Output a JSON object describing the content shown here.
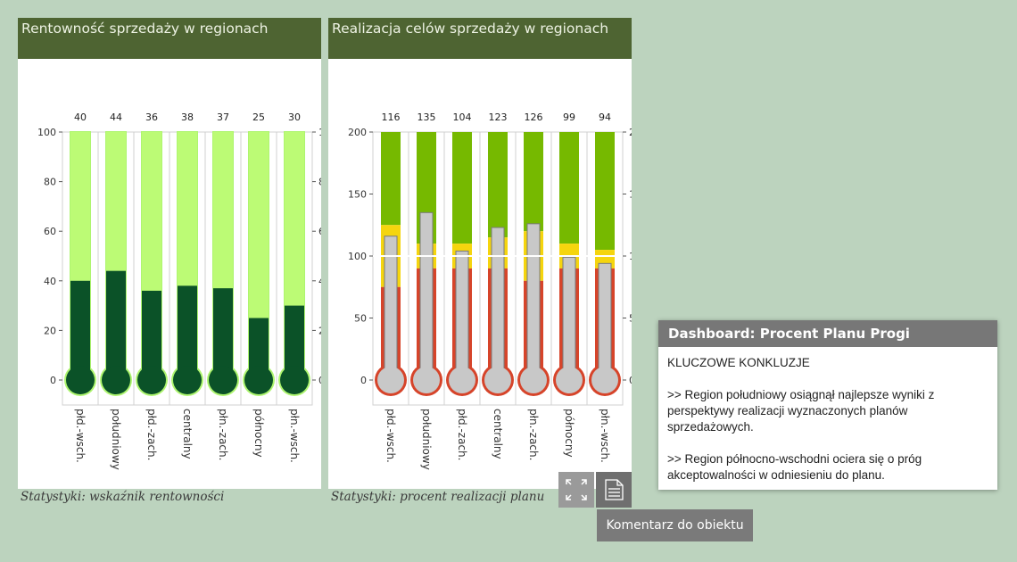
{
  "panels": [
    {
      "title": "Rentowność sprzedaży w regionach",
      "caption": "Statystyki: wskaźnik rentowności"
    },
    {
      "title": "Realizacja celów sprzedaży w regionach",
      "caption": "Statystyki: procent realizacji planu"
    }
  ],
  "chart_data": [
    {
      "type": "bar",
      "title": "Rentowność sprzedaży w regionach",
      "categories": [
        "płd.-wsch.",
        "południowy",
        "płd.-zach.",
        "centralny",
        "płn.-zach.",
        "północny",
        "płn.-wsch."
      ],
      "values": [
        40,
        44,
        36,
        38,
        37,
        25,
        30
      ],
      "ylim": [
        0,
        100
      ],
      "yticks": [
        0,
        20,
        40,
        60,
        80,
        100
      ],
      "grid": false,
      "colors": {
        "fill": "#0b5228",
        "track": "#bcfb75",
        "outline": "#aef56f"
      }
    },
    {
      "type": "bar",
      "title": "Realizacja celów sprzedaży w regionach",
      "categories": [
        "płd.-wsch.",
        "południowy",
        "płd.-zach.",
        "centralny",
        "płn.-zach.",
        "północny",
        "płn.-wsch."
      ],
      "values": [
        116,
        135,
        104,
        123,
        126,
        99,
        94
      ],
      "thresholds": [
        {
          "red": 75,
          "yellow": 125
        },
        {
          "red": 90,
          "yellow": 110
        },
        {
          "red": 90,
          "yellow": 110
        },
        {
          "red": 90,
          "yellow": 115
        },
        {
          "red": 80,
          "yellow": 120
        },
        {
          "red": 90,
          "yellow": 110
        },
        {
          "red": 90,
          "yellow": 105
        }
      ],
      "reference_line": 100,
      "ylim": [
        0,
        200
      ],
      "yticks": [
        0,
        50,
        100,
        150,
        200
      ],
      "grid": false,
      "colors": {
        "fill": "#c8c8c8",
        "red": "#d6442a",
        "yellow": "#f5d50e",
        "green": "#76b900"
      }
    }
  ],
  "tiles": {
    "expand_icon": "expand-icon",
    "note_icon": "document-icon"
  },
  "dashboard": {
    "title": "Dashboard: Procent Planu Progi",
    "heading": "KLUCZOWE KONKLUZJE",
    "paragraph1": ">> Region południowy osiągnął najlepsze wyniki z perspektywy realizacji wyznaczonych planów sprzedażowych.",
    "paragraph2": ">> Region północno-wschodni ociera się o próg akceptowalności w odniesieniu do planu."
  },
  "comment_button": "Komentarz do obiektu"
}
